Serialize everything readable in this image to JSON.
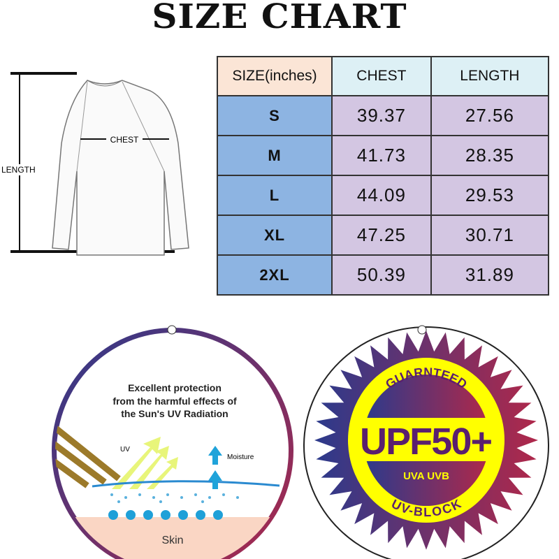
{
  "title": "SIZE CHART",
  "diagram": {
    "length_label": "LENGTH",
    "chest_label": "CHEST"
  },
  "table": {
    "headers": [
      "SIZE(inches)",
      "CHEST",
      "LENGTH"
    ],
    "rows": [
      [
        "S",
        "39.37",
        "27.56"
      ],
      [
        "M",
        "41.73",
        "28.35"
      ],
      [
        "L",
        "44.09",
        "29.53"
      ],
      [
        "XL",
        "47.25",
        "30.71"
      ],
      [
        "2XL",
        "50.39",
        "31.89"
      ]
    ]
  },
  "uv_tag": {
    "heading_lines": [
      "Excellent protection",
      "from the harmful effects of",
      "the Sun's UV Radiation"
    ],
    "uv_label": "UV",
    "moisture_label": "Moisture",
    "skin_label": "Skin"
  },
  "upf_badge": {
    "top_text": "GUARNTEED",
    "main_text": "UPF50+",
    "sub_text": "UVA UVB",
    "bottom_text": "UV-BLOCK"
  },
  "colors": {
    "header_size": "#fbe5d6",
    "header_cols": "#ddf0f5",
    "size_cells": "#8db4e2",
    "value_cells": "#d3c6e2",
    "badge_yellow": "#ffff00",
    "gradient_start": "#2b3a8c",
    "gradient_end": "#b0284a"
  }
}
